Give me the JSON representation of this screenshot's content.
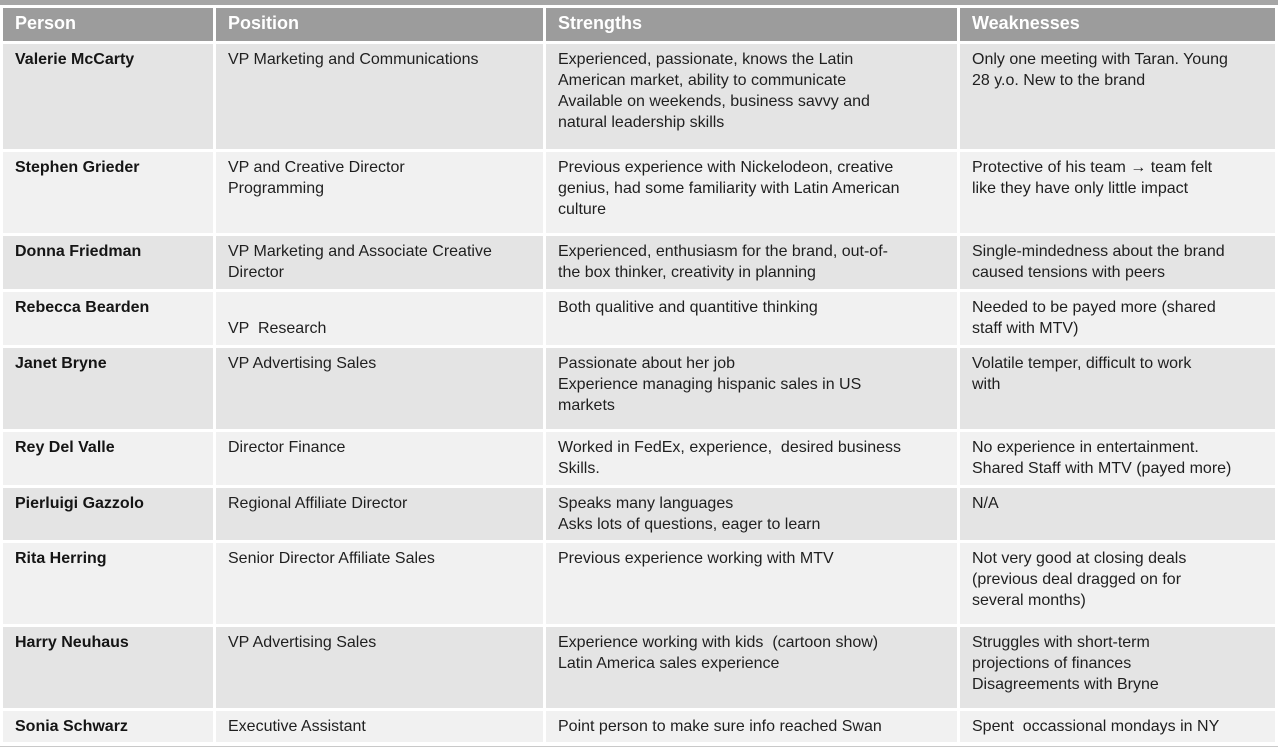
{
  "colors": {
    "header_bg": "#9c9c9c",
    "header_fg": "#ffffff",
    "row_odd": "#e4e4e4",
    "row_even": "#f1f1f1",
    "body_fg": "#1f1f1f",
    "top_strip": "#a6a6a6",
    "bottom_line": "#c9c9c9"
  },
  "table": {
    "columns": [
      {
        "key": "person",
        "label": "Person"
      },
      {
        "key": "position",
        "label": "Position"
      },
      {
        "key": "strengths",
        "label": "Strengths"
      },
      {
        "key": "weaknesses",
        "label": "Weaknesses"
      }
    ],
    "rows": [
      {
        "person": "Valerie McCarty",
        "position": "VP Marketing and Communications",
        "strengths": [
          "Experienced, passionate, knows the Latin",
          "American market, ability to communicate",
          "Available on weekends, business savvy and",
          "natural leadership skills"
        ],
        "weaknesses": [
          "Only one meeting with Taran. Young",
          "28 y.o. New to the brand"
        ]
      },
      {
        "person": "Stephen Grieder",
        "position": [
          "VP and Creative Director",
          "Programming"
        ],
        "strengths": [
          "Previous experience with Nickelodeon, creative",
          "genius, had some familiarity with Latin American",
          "culture"
        ],
        "weaknesses": [
          "Protective of his team → team felt",
          "like they have only little impact"
        ]
      },
      {
        "person": "Donna Friedman",
        "position": [
          "VP Marketing and Associate Creative",
          "Director"
        ],
        "strengths": [
          "Experienced, enthusiasm for the brand, out-of-",
          "the box thinker, creativity in planning"
        ],
        "weaknesses": [
          "Single-mindedness about the brand",
          "caused tensions with peers"
        ]
      },
      {
        "person": "Rebecca Bearden",
        "position": [
          "",
          "VP  Research"
        ],
        "strengths": [
          "Both qualitive and quantitive thinking"
        ],
        "weaknesses": [
          "Needed to be payed more (shared",
          "staff with MTV)"
        ]
      },
      {
        "person": "Janet Bryne",
        "position": "VP Advertising Sales",
        "strengths": [
          "Passionate about her job",
          "Experience managing hispanic sales in US",
          "markets"
        ],
        "weaknesses": [
          "Volatile temper, difficult to work",
          "with"
        ]
      },
      {
        "person": "Rey Del Valle",
        "position": "Director Finance",
        "strengths": [
          "Worked in FedEx, experience,  desired business",
          "Skills."
        ],
        "weaknesses": [
          "No experience in entertainment.",
          "Shared Staff with MTV (payed more)"
        ]
      },
      {
        "person": "Pierluigi Gazzolo",
        "position": "Regional Affiliate Director",
        "strengths": [
          "Speaks many languages",
          "Asks lots of questions, eager to learn"
        ],
        "weaknesses": [
          "N/A"
        ]
      },
      {
        "person": "Rita Herring",
        "position": "Senior Director Affiliate Sales",
        "strengths": [
          "Previous experience working with MTV"
        ],
        "weaknesses": [
          "Not very good at closing deals",
          "(previous deal dragged on for",
          "several months)"
        ]
      },
      {
        "person": "Harry Neuhaus",
        "position": "VP Advertising Sales",
        "strengths": [
          "Experience working with kids  (cartoon show)",
          "Latin America sales experience"
        ],
        "weaknesses": [
          "Struggles with short-term",
          "projections of finances",
          "Disagreements with Bryne"
        ]
      },
      {
        "person": "Sonia Schwarz",
        "position": "Executive Assistant",
        "strengths": [
          "Point person to make sure info reached Swan"
        ],
        "weaknesses": [
          "Spent  occassional mondays in NY"
        ]
      }
    ]
  }
}
